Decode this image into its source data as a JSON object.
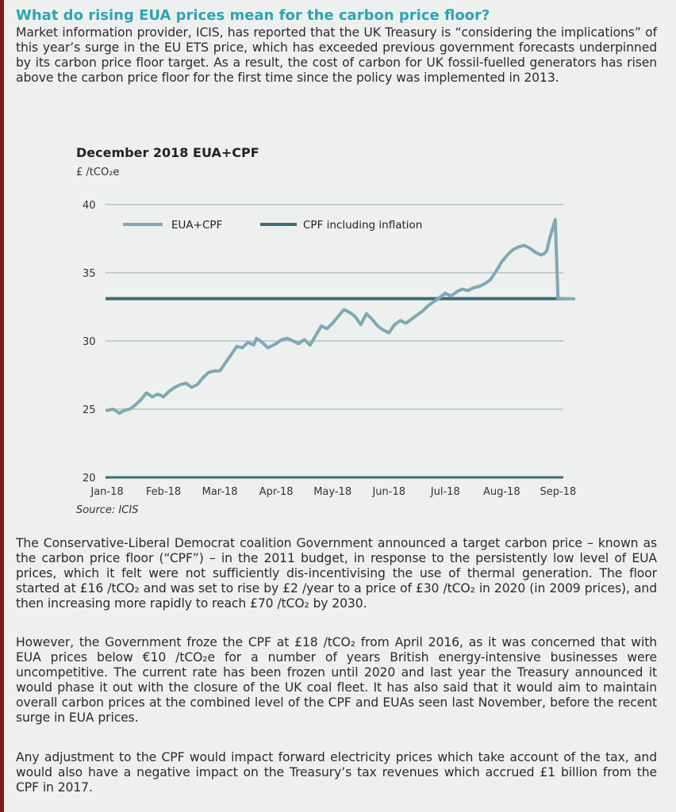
{
  "article": {
    "heading": "What do rising EUA prices mean for the carbon price floor?",
    "intro": "Market information provider, ICIS, has reported that the UK Treasury is “considering the implications” of this year’s surge in the EU ETS price, which has exceeded previous government forecasts underpinned by its carbon price floor target. As a result, the cost of carbon for UK fossil-fuelled generators has risen above the carbon price floor for the first time since the policy was implemented in 2013.",
    "p1": "The Conservative-Liberal Democrat coalition Government announced a target carbon price – known as the carbon price floor (“CPF”) – in the 2011 budget, in response to the persistently low level of EUA prices, which it felt were not sufficiently dis-incentivising the use of thermal generation. The floor started at £16 /tCO₂ and was set to rise by £2 /year to a price of £30 /tCO₂ in 2020 (in 2009 prices), and then increasing more rapidly to reach £70 /tCO₂ by 2030.",
    "p2": "However, the Government froze the CPF at £18 /tCO₂ from April 2016, as it was concerned that with EUA prices below €10 /tCO₂e for a number of years British energy-intensive businesses were uncompetitive. The current rate has been frozen until 2020 and last year the Treasury announced it would phase it out with the closure of the UK coal fleet. It has also said that it would aim to maintain overall carbon prices at the combined level of the CPF and EUAs seen last November, before the recent surge in EUA prices.",
    "p3": "Any adjustment to the CPF would impact forward electricity prices which take account of the tax, and would also have a negative impact on the Treasury’s tax revenues which accrued £1 billion from the CPF in 2017."
  },
  "chart_data": {
    "type": "line",
    "title": "December 2018 EUA+CPF",
    "ylabel": "£ /tCO₂e",
    "source": "Source: ICIS",
    "ylim": [
      20,
      40
    ],
    "yticks": [
      "20",
      "25",
      "30",
      "35",
      "40"
    ],
    "xticks": [
      "Jan-18",
      "Feb-18",
      "Mar-18",
      "Apr-18",
      "May-18",
      "Jun-18",
      "Jul-18",
      "Aug-18",
      "Sep-18"
    ],
    "grid": true,
    "legend_position": "top-left",
    "colors": {
      "eua_cpf": "#7fa9b4",
      "cpf": "#3e6c73"
    },
    "series": [
      {
        "name": "EUA+CPF",
        "x": [
          0,
          0.1,
          0.15,
          0.22,
          0.3,
          0.4,
          0.5,
          0.6,
          0.7,
          0.8,
          0.9,
          1.0,
          1.1,
          1.2,
          1.3,
          1.4,
          1.5,
          1.6,
          1.7,
          1.8,
          1.9,
          2.0,
          2.1,
          2.2,
          2.3,
          2.4,
          2.5,
          2.6,
          2.65,
          2.75,
          2.85,
          2.95,
          3.0,
          3.1,
          3.2,
          3.3,
          3.4,
          3.5,
          3.6,
          3.7,
          3.8,
          3.9,
          4.0,
          4.1,
          4.2,
          4.3,
          4.4,
          4.5,
          4.6,
          4.7,
          4.8,
          4.9,
          5.0,
          5.05,
          5.1,
          5.2,
          5.3,
          5.4,
          5.5,
          5.6,
          5.7,
          5.8,
          5.9,
          6.0,
          6.1,
          6.2,
          6.3,
          6.4,
          6.5,
          6.6,
          6.7,
          6.8,
          6.9,
          7.0,
          7.1,
          7.2,
          7.3,
          7.4,
          7.5,
          7.6,
          7.7,
          7.75,
          7.8,
          7.85,
          7.9,
          7.95,
          8.0,
          8.05,
          8.1,
          8.15,
          8.2,
          8.25,
          8.28
        ],
        "values": [
          24.9,
          25.0,
          24.9,
          24.7,
          24.9,
          25.0,
          25.3,
          25.7,
          26.2,
          25.9,
          26.1,
          25.9,
          26.3,
          26.6,
          26.8,
          26.9,
          26.6,
          26.8,
          27.3,
          27.7,
          27.8,
          27.8,
          28.4,
          29.0,
          29.6,
          29.5,
          29.9,
          29.7,
          30.2,
          29.9,
          29.5,
          29.7,
          29.8,
          30.1,
          30.2,
          30.0,
          29.8,
          30.1,
          29.7,
          30.4,
          31.1,
          30.9,
          31.3,
          31.8,
          32.3,
          32.1,
          31.8,
          31.2,
          32.0,
          31.6,
          31.1,
          30.8,
          30.6,
          30.9,
          31.2,
          31.5,
          31.3,
          31.6,
          31.9,
          32.2,
          32.6,
          32.9,
          33.2,
          33.5,
          33.3,
          33.6,
          33.8,
          33.7,
          33.9,
          34.0,
          34.2,
          34.5,
          35.1,
          35.8,
          36.3,
          36.7,
          36.9,
          37.0,
          36.8,
          36.5,
          36.3,
          36.4,
          36.6,
          37.5,
          38.2,
          38.9,
          33.1,
          33.1,
          33.1,
          33.1,
          33.1,
          33.1,
          33.1
        ]
      },
      {
        "name": "CPF including inflation",
        "values": [
          33.1,
          33.1
        ]
      }
    ]
  }
}
